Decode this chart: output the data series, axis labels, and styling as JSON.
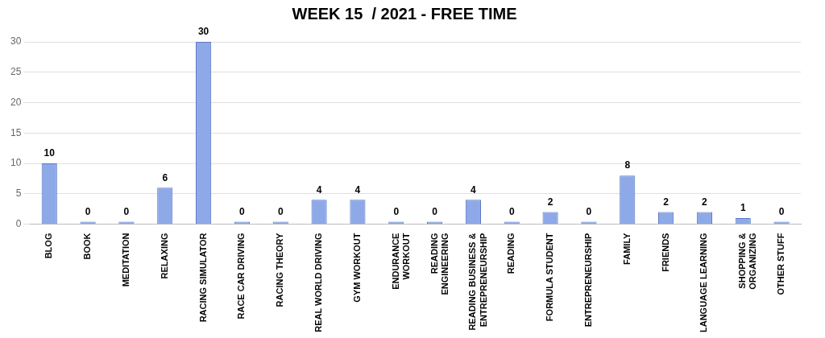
{
  "chart_data": {
    "type": "bar",
    "title": "WEEK 15  / 2021 - FREE TIME",
    "categories": [
      "BLOG",
      "BOOK",
      "MEDITATION",
      "RELAXING",
      "RACING SIMULATOR",
      "RACE CAR DRIVING",
      "RACING THEORY",
      "REAL WORLD DRIVING",
      "GYM WORKOUT",
      "ENDURANCE WORKOUT",
      "READING ENGINEERING",
      "READING BUSINESS & ENTREPRENEURSHIP",
      "READING",
      "FORMULA STUDENT",
      "ENTREPRENEURSHIP",
      "FAMILY",
      "FRIENDS",
      "LANGUAGE LEARNING",
      "SHOPPING & ORGANIZING",
      "OTHER STUFF"
    ],
    "values": [
      10,
      0,
      0,
      6,
      30,
      0,
      0,
      4,
      4,
      0,
      0,
      4,
      0,
      2,
      0,
      8,
      2,
      2,
      1,
      0
    ],
    "color": "#8ea9e8",
    "ylim": [
      0,
      30
    ],
    "yticks": [
      0,
      5,
      10,
      15,
      20,
      25,
      30
    ],
    "grid": "y",
    "data_labels": true,
    "legend": false
  }
}
